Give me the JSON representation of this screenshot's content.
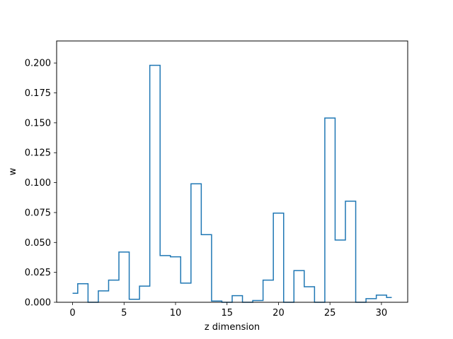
{
  "chart_data": {
    "type": "line",
    "drawstyle": "steps-mid",
    "title": "",
    "xlabel": "z dimension",
    "ylabel": "w",
    "xlim": [
      -1.55,
      32.55
    ],
    "ylim": [
      0.0,
      0.2184
    ],
    "xticks": [
      0,
      5,
      10,
      15,
      20,
      25,
      30
    ],
    "xtick_labels": [
      "0",
      "5",
      "10",
      "15",
      "20",
      "25",
      "30"
    ],
    "yticks": [
      0.0,
      0.025,
      0.05,
      0.075,
      0.1,
      0.125,
      0.15,
      0.175,
      0.2
    ],
    "ytick_labels": [
      "0.000",
      "0.025",
      "0.050",
      "0.075",
      "0.100",
      "0.125",
      "0.150",
      "0.175",
      "0.200"
    ],
    "grid": false,
    "legend": "none",
    "series": [
      {
        "color": "#1f77b4",
        "x": [
          0,
          1,
          2,
          3,
          4,
          5,
          6,
          7,
          8,
          9,
          10,
          11,
          12,
          13,
          14,
          15,
          16,
          17,
          18,
          19,
          20,
          21,
          22,
          23,
          24,
          25,
          26,
          27,
          28,
          29,
          30,
          31
        ],
        "values": [
          0.0075,
          0.0155,
          0.0,
          0.0095,
          0.0185,
          0.042,
          0.0025,
          0.0135,
          0.198,
          0.039,
          0.038,
          0.016,
          0.099,
          0.0565,
          0.001,
          0.0,
          0.0055,
          0.0,
          0.0015,
          0.0185,
          0.0745,
          0.0,
          0.0265,
          0.013,
          0.0,
          0.154,
          0.052,
          0.0845,
          0.0,
          0.003,
          0.006,
          0.004
        ]
      }
    ]
  }
}
